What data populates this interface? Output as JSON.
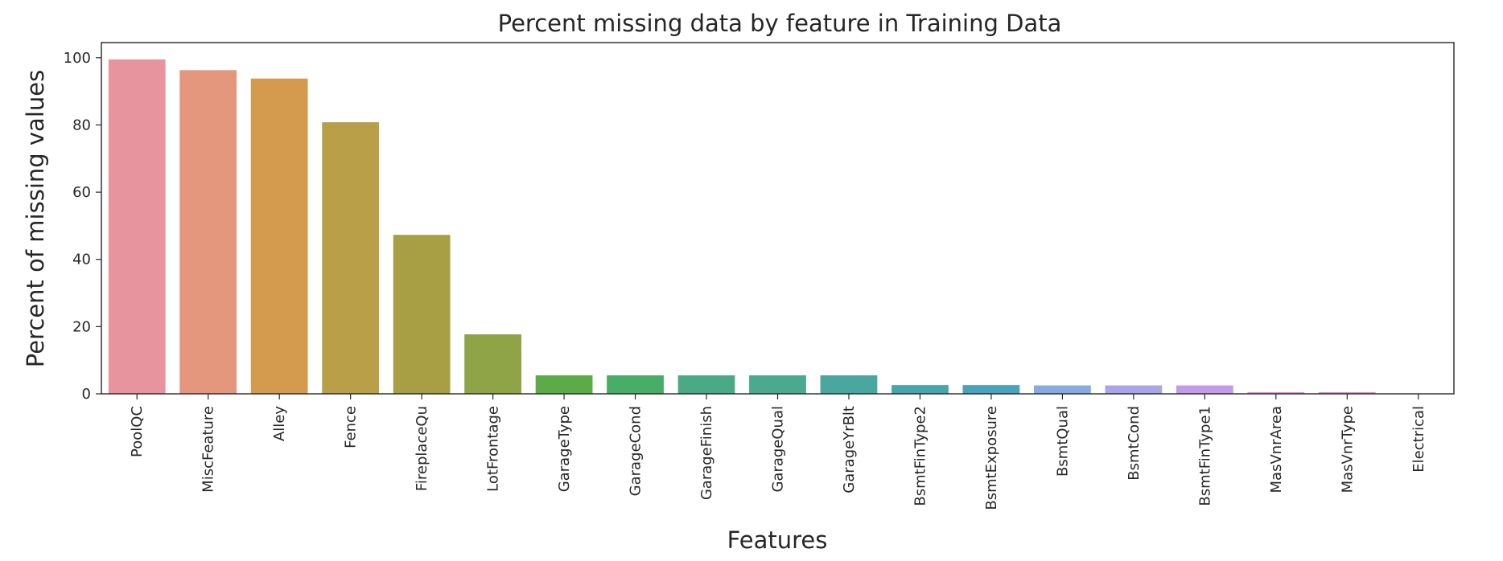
{
  "chart_data": {
    "type": "bar",
    "title": "Percent missing data by feature in Training Data",
    "xlabel": "Features",
    "ylabel": "Percent of missing values",
    "ylim": [
      0,
      104.5
    ],
    "yticks": [
      0,
      20,
      40,
      60,
      80,
      100
    ],
    "grid": false,
    "categories": [
      "PoolQC",
      "MiscFeature",
      "Alley",
      "Fence",
      "FireplaceQu",
      "LotFrontage",
      "GarageType",
      "GarageCond",
      "GarageFinish",
      "GarageQual",
      "GarageYrBlt",
      "BsmtFinType2",
      "BsmtExposure",
      "BsmtQual",
      "BsmtCond",
      "BsmtFinType1",
      "MasVnrArea",
      "MasVnrType",
      "Electrical"
    ],
    "values": [
      99.5,
      96.3,
      93.8,
      80.8,
      47.3,
      17.7,
      5.5,
      5.5,
      5.5,
      5.5,
      5.5,
      2.6,
      2.6,
      2.5,
      2.5,
      2.5,
      0.5,
      0.5,
      0.1
    ],
    "colors": [
      "#e8949f",
      "#e5977d",
      "#d49a4e",
      "#b89f48",
      "#a89f45",
      "#8fa447",
      "#5bac48",
      "#48ad66",
      "#49aa85",
      "#4aa98f",
      "#49a79f",
      "#47a5ad",
      "#4ba2be",
      "#86abe3",
      "#a9a5e9",
      "#c49be8",
      "#dd8ee4",
      "#e287d2",
      "#e68ab2"
    ]
  }
}
